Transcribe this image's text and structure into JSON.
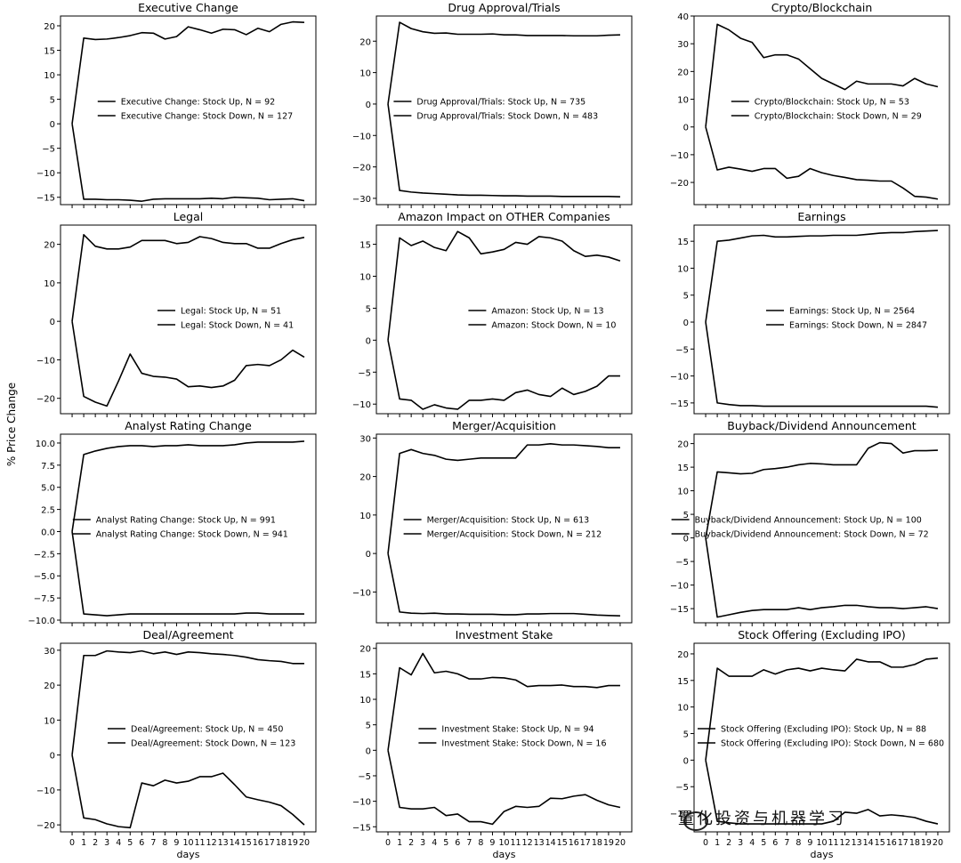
{
  "figure": {
    "ylabel": "% Price Change",
    "xlabel": "days",
    "watermark": "量化投资与机器学习",
    "line_color": "#000000"
  },
  "chart_data": [
    {
      "type": "line",
      "title": "Executive Change",
      "ylim": [
        -16.5,
        22
      ],
      "yticks": [
        -15,
        -10,
        -5,
        0,
        5,
        10,
        15,
        20
      ],
      "x": [
        0,
        1,
        2,
        3,
        4,
        5,
        6,
        7,
        8,
        9,
        10,
        11,
        12,
        13,
        14,
        15,
        16,
        17,
        18,
        19,
        20
      ],
      "legend": "center-right",
      "series": [
        {
          "name": "Executive Change: Stock Up, N = 92",
          "values": [
            0,
            17.5,
            17.2,
            17.3,
            17.6,
            18.0,
            18.6,
            18.5,
            17.3,
            17.8,
            19.8,
            19.2,
            18.5,
            19.3,
            19.2,
            18.2,
            19.5,
            18.8,
            20.3,
            20.8,
            20.7
          ]
        },
        {
          "name": "Executive Change: Stock Down, N = 127",
          "values": [
            0,
            -15.4,
            -15.4,
            -15.5,
            -15.5,
            -15.6,
            -15.8,
            -15.4,
            -15.3,
            -15.3,
            -15.3,
            -15.3,
            -15.2,
            -15.3,
            -15.0,
            -15.1,
            -15.2,
            -15.5,
            -15.4,
            -15.3,
            -15.7
          ]
        }
      ]
    },
    {
      "type": "line",
      "title": "Drug Approval/Trials",
      "ylim": [
        -32,
        28
      ],
      "yticks": [
        -30,
        -20,
        -10,
        0,
        10,
        20
      ],
      "x": [
        0,
        1,
        2,
        3,
        4,
        5,
        6,
        7,
        8,
        9,
        10,
        11,
        12,
        13,
        14,
        15,
        16,
        17,
        18,
        19,
        20
      ],
      "legend": "center-right",
      "series": [
        {
          "name": "Drug Approval/Trials: Stock Up, N = 735",
          "values": [
            0,
            26,
            24,
            23,
            22.5,
            22.6,
            22.2,
            22.2,
            22.2,
            22.3,
            22.0,
            22.0,
            21.8,
            21.8,
            21.8,
            21.8,
            21.7,
            21.7,
            21.7,
            21.9,
            22.0
          ]
        },
        {
          "name": "Drug Approval/Trials: Stock Down, N = 483",
          "values": [
            0,
            -27.5,
            -28,
            -28.3,
            -28.5,
            -28.7,
            -28.9,
            -29.0,
            -29.0,
            -29.1,
            -29.2,
            -29.2,
            -29.3,
            -29.3,
            -29.3,
            -29.4,
            -29.4,
            -29.4,
            -29.4,
            -29.4,
            -29.5
          ]
        }
      ]
    },
    {
      "type": "line",
      "title": "Crypto/Blockchain",
      "ylim": [
        -28,
        40
      ],
      "yticks": [
        -20,
        -10,
        0,
        10,
        20,
        30,
        40
      ],
      "x": [
        0,
        1,
        2,
        3,
        4,
        5,
        6,
        7,
        8,
        9,
        10,
        11,
        12,
        13,
        14,
        15,
        16,
        17,
        18,
        19,
        20
      ],
      "legend": "center-right",
      "series": [
        {
          "name": "Crypto/Blockchain: Stock Up, N = 53",
          "values": [
            0,
            37,
            35,
            32,
            30.5,
            25,
            26,
            26,
            24.5,
            21,
            17.5,
            15.5,
            13.5,
            16.5,
            15.5,
            15.5,
            15.5,
            14.8,
            17.5,
            15.5,
            14.5
          ]
        },
        {
          "name": "Crypto/Blockchain: Stock Down, N = 29",
          "values": [
            0,
            -15.5,
            -14.5,
            -15.2,
            -16,
            -15,
            -15,
            -18.5,
            -17.8,
            -15,
            -16.5,
            -17.5,
            -18.2,
            -19,
            -19.2,
            -19.5,
            -19.5,
            -22,
            -25,
            -25.3,
            -26
          ]
        }
      ]
    },
    {
      "type": "line",
      "title": "Legal",
      "ylim": [
        -24,
        25
      ],
      "yticks": [
        -20,
        -10,
        0,
        10,
        20
      ],
      "x": [
        0,
        1,
        2,
        3,
        4,
        5,
        6,
        7,
        8,
        9,
        10,
        11,
        12,
        13,
        14,
        15,
        16,
        17,
        18,
        19,
        20
      ],
      "legend": "center-right",
      "series": [
        {
          "name": "Legal: Stock Up, N = 51",
          "values": [
            0,
            22.5,
            19.5,
            18.8,
            18.8,
            19.3,
            21,
            21,
            21,
            20.2,
            20.5,
            22,
            21.5,
            20.5,
            20.2,
            20.2,
            19,
            19,
            20.2,
            21.2,
            21.8
          ]
        },
        {
          "name": "Legal: Stock Down, N = 41",
          "values": [
            0,
            -19.5,
            -21,
            -22,
            -15.5,
            -8.5,
            -13.5,
            -14.3,
            -14.5,
            -15,
            -17,
            -16.8,
            -17.2,
            -16.8,
            -15.3,
            -11.5,
            -11.2,
            -11.5,
            -10,
            -7.5,
            -9.3
          ]
        }
      ]
    },
    {
      "type": "line",
      "title": "Amazon Impact on OTHER Companies",
      "ylim": [
        -11.5,
        18
      ],
      "yticks": [
        -10,
        -5,
        0,
        5,
        10,
        15
      ],
      "x": [
        0,
        1,
        2,
        3,
        4,
        5,
        6,
        7,
        8,
        9,
        10,
        11,
        12,
        13,
        14,
        15,
        16,
        17,
        18,
        19,
        20
      ],
      "legend": "center-right",
      "series": [
        {
          "name": "Amazon: Stock Up, N = 13",
          "values": [
            0,
            16,
            14.8,
            15.5,
            14.5,
            14,
            17,
            16,
            13.5,
            13.8,
            14.2,
            15.3,
            15,
            16.2,
            16,
            15.5,
            14,
            13.1,
            13.3,
            13,
            12.4
          ]
        },
        {
          "name": "Amazon: Stock Down, N = 10",
          "values": [
            0,
            -9.2,
            -9.4,
            -10.8,
            -10.1,
            -10.6,
            -10.8,
            -9.4,
            -9.4,
            -9.2,
            -9.4,
            -8.2,
            -7.8,
            -8.5,
            -8.8,
            -7.5,
            -8.5,
            -8,
            -7.2,
            -5.6,
            -5.6
          ]
        }
      ]
    },
    {
      "type": "line",
      "title": "Earnings",
      "ylim": [
        -17,
        18
      ],
      "yticks": [
        -15,
        -10,
        -5,
        0,
        5,
        10,
        15
      ],
      "x": [
        0,
        1,
        2,
        3,
        4,
        5,
        6,
        7,
        8,
        9,
        10,
        11,
        12,
        13,
        14,
        15,
        16,
        17,
        18,
        19,
        20
      ],
      "legend": "center-right",
      "series": [
        {
          "name": "Earnings: Stock Up, N = 2564",
          "values": [
            0,
            15,
            15.2,
            15.6,
            16.0,
            16.1,
            15.8,
            15.8,
            15.9,
            16.0,
            16.0,
            16.1,
            16.1,
            16.1,
            16.3,
            16.5,
            16.6,
            16.6,
            16.8,
            16.9,
            17.0
          ]
        },
        {
          "name": "Earnings: Stock Down, N = 2847",
          "values": [
            0,
            -15.0,
            -15.3,
            -15.5,
            -15.5,
            -15.6,
            -15.6,
            -15.6,
            -15.6,
            -15.6,
            -15.6,
            -15.6,
            -15.6,
            -15.6,
            -15.6,
            -15.6,
            -15.6,
            -15.6,
            -15.6,
            -15.6,
            -15.8
          ]
        }
      ]
    },
    {
      "type": "line",
      "title": "Analyst Rating Change",
      "ylim": [
        -10.3,
        11
      ],
      "yticks": [
        -10,
        -7.5,
        -5,
        -2.5,
        0,
        2.5,
        5,
        7.5,
        10
      ],
      "ytick_labels": [
        "−10.0",
        "−7.5",
        "−5.0",
        "−2.5",
        "0.0",
        "2.5",
        "5.0",
        "7.5",
        "10.0"
      ],
      "x": [
        0,
        1,
        2,
        3,
        4,
        5,
        6,
        7,
        8,
        9,
        10,
        11,
        12,
        13,
        14,
        15,
        16,
        17,
        18,
        19,
        20
      ],
      "legend": "center-right",
      "series": [
        {
          "name": "Analyst Rating Change: Stock Up, N = 991",
          "values": [
            0,
            8.7,
            9.1,
            9.4,
            9.6,
            9.7,
            9.7,
            9.6,
            9.7,
            9.7,
            9.8,
            9.7,
            9.7,
            9.7,
            9.8,
            10.0,
            10.1,
            10.1,
            10.1,
            10.1,
            10.2
          ]
        },
        {
          "name": "Analyst Rating Change: Stock Down, N = 941",
          "values": [
            0,
            -9.3,
            -9.4,
            -9.5,
            -9.4,
            -9.3,
            -9.3,
            -9.3,
            -9.3,
            -9.3,
            -9.3,
            -9.3,
            -9.3,
            -9.3,
            -9.3,
            -9.2,
            -9.2,
            -9.3,
            -9.3,
            -9.3,
            -9.3
          ]
        }
      ]
    },
    {
      "type": "line",
      "title": "Merger/Acquisition",
      "ylim": [
        -18,
        31
      ],
      "yticks": [
        -10,
        0,
        10,
        20,
        30
      ],
      "x": [
        0,
        1,
        2,
        3,
        4,
        5,
        6,
        7,
        8,
        9,
        10,
        11,
        12,
        13,
        14,
        15,
        16,
        17,
        18,
        19,
        20
      ],
      "legend": "center-right",
      "series": [
        {
          "name": "Merger/Acquisition: Stock Up, N = 613",
          "values": [
            0,
            26,
            27,
            26,
            25.5,
            24.5,
            24.2,
            24.5,
            24.8,
            24.8,
            24.8,
            24.8,
            28.2,
            28.2,
            28.5,
            28.2,
            28.2,
            28,
            27.8,
            27.5,
            27.5
          ]
        },
        {
          "name": "Merger/Acquisition: Stock Down, N = 212",
          "values": [
            0,
            -15.2,
            -15.5,
            -15.6,
            -15.5,
            -15.7,
            -15.7,
            -15.8,
            -15.8,
            -15.8,
            -15.9,
            -15.9,
            -15.7,
            -15.7,
            -15.6,
            -15.6,
            -15.6,
            -15.8,
            -16,
            -16.1,
            -16.2
          ]
        }
      ]
    },
    {
      "type": "line",
      "title": "Buyback/Dividend Announcement",
      "ylim": [
        -18,
        22
      ],
      "yticks": [
        -15,
        -10,
        -5,
        0,
        5,
        10,
        15,
        20
      ],
      "x": [
        0,
        1,
        2,
        3,
        4,
        5,
        6,
        7,
        8,
        9,
        10,
        11,
        12,
        13,
        14,
        15,
        16,
        17,
        18,
        19,
        20
      ],
      "legend": "center-right",
      "series": [
        {
          "name": "Buyback/Dividend Announcement: Stock Up, N = 100",
          "values": [
            0,
            14,
            13.8,
            13.6,
            13.7,
            14.5,
            14.7,
            15,
            15.5,
            15.8,
            15.7,
            15.5,
            15.5,
            15.5,
            19,
            20.2,
            20,
            18,
            18.5,
            18.5,
            18.6
          ]
        },
        {
          "name": "Buyback/Dividend Announcement: Stock Down, N = 72",
          "values": [
            0,
            -16.8,
            -16.3,
            -15.8,
            -15.4,
            -15.2,
            -15.2,
            -15.2,
            -14.8,
            -15.2,
            -14.8,
            -14.6,
            -14.3,
            -14.3,
            -14.6,
            -14.8,
            -14.8,
            -15,
            -14.8,
            -14.6,
            -15
          ]
        }
      ]
    },
    {
      "type": "line",
      "title": "Deal/Agreement",
      "ylim": [
        -22,
        32
      ],
      "yticks": [
        -20,
        -10,
        0,
        10,
        20,
        30
      ],
      "x": [
        0,
        1,
        2,
        3,
        4,
        5,
        6,
        7,
        8,
        9,
        10,
        11,
        12,
        13,
        14,
        15,
        16,
        17,
        18,
        19,
        20
      ],
      "legend": "center-right",
      "series": [
        {
          "name": "Deal/Agreement: Stock Up, N = 450",
          "values": [
            0,
            28.5,
            28.5,
            29.8,
            29.5,
            29.3,
            29.8,
            29.0,
            29.5,
            28.8,
            29.5,
            29.3,
            29.0,
            28.8,
            28.5,
            28,
            27.3,
            27,
            26.8,
            26.2,
            26.2
          ]
        },
        {
          "name": "Deal/Agreement: Stock Down, N = 123",
          "values": [
            0,
            -18,
            -18.5,
            -19.7,
            -20.5,
            -20.8,
            -8,
            -8.8,
            -7.2,
            -8,
            -7.5,
            -6.2,
            -6.2,
            -5.2,
            -8.5,
            -12,
            -12.8,
            -13.5,
            -14.5,
            -17,
            -20
          ]
        }
      ]
    },
    {
      "type": "line",
      "title": "Investment Stake",
      "ylim": [
        -16,
        21
      ],
      "yticks": [
        -15,
        -10,
        -5,
        0,
        5,
        10,
        15,
        20
      ],
      "x": [
        0,
        1,
        2,
        3,
        4,
        5,
        6,
        7,
        8,
        9,
        10,
        11,
        12,
        13,
        14,
        15,
        16,
        17,
        18,
        19,
        20
      ],
      "legend": "center-right",
      "series": [
        {
          "name": "Investment Stake: Stock Up, N = 94",
          "values": [
            0,
            16.2,
            14.8,
            19,
            15.2,
            15.5,
            15,
            14,
            14,
            14.3,
            14.2,
            13.8,
            12.5,
            12.7,
            12.7,
            12.8,
            12.5,
            12.5,
            12.3,
            12.7,
            12.7
          ]
        },
        {
          "name": "Investment Stake: Stock Down, N = 16",
          "values": [
            0,
            -11.2,
            -11.5,
            -11.5,
            -11.2,
            -12.8,
            -12.5,
            -14,
            -14,
            -14.5,
            -12,
            -11,
            -11.2,
            -11,
            -9.4,
            -9.5,
            -9,
            -8.7,
            -9.8,
            -10.7,
            -11.2
          ]
        }
      ]
    },
    {
      "type": "line",
      "title": "Stock Offering (Excluding IPO)",
      "ylim": [
        -13.5,
        22
      ],
      "yticks": [
        -10,
        -5,
        0,
        5,
        10,
        15,
        20
      ],
      "x": [
        0,
        1,
        2,
        3,
        4,
        5,
        6,
        7,
        8,
        9,
        10,
        11,
        12,
        13,
        14,
        15,
        16,
        17,
        18,
        19,
        20
      ],
      "legend": "center-left",
      "series": [
        {
          "name": "Stock Offering (Excluding IPO): Stock Up, N = 88",
          "values": [
            0,
            17.3,
            15.8,
            15.8,
            15.8,
            17,
            16.2,
            17,
            17.3,
            16.8,
            17.3,
            17,
            16.8,
            19,
            18.5,
            18.5,
            17.5,
            17.5,
            18,
            19,
            19.2
          ]
        },
        {
          "name": "Stock Offering (Excluding IPO): Stock Down, N = 680",
          "values": [
            0,
            -11.5,
            -11.8,
            -12,
            -12,
            -12,
            -12,
            -12,
            -12,
            -12,
            -12,
            -11.5,
            -9.8,
            -10,
            -9.3,
            -10.5,
            -10.3,
            -10.5,
            -10.8,
            -11.5,
            -12
          ]
        }
      ]
    }
  ]
}
